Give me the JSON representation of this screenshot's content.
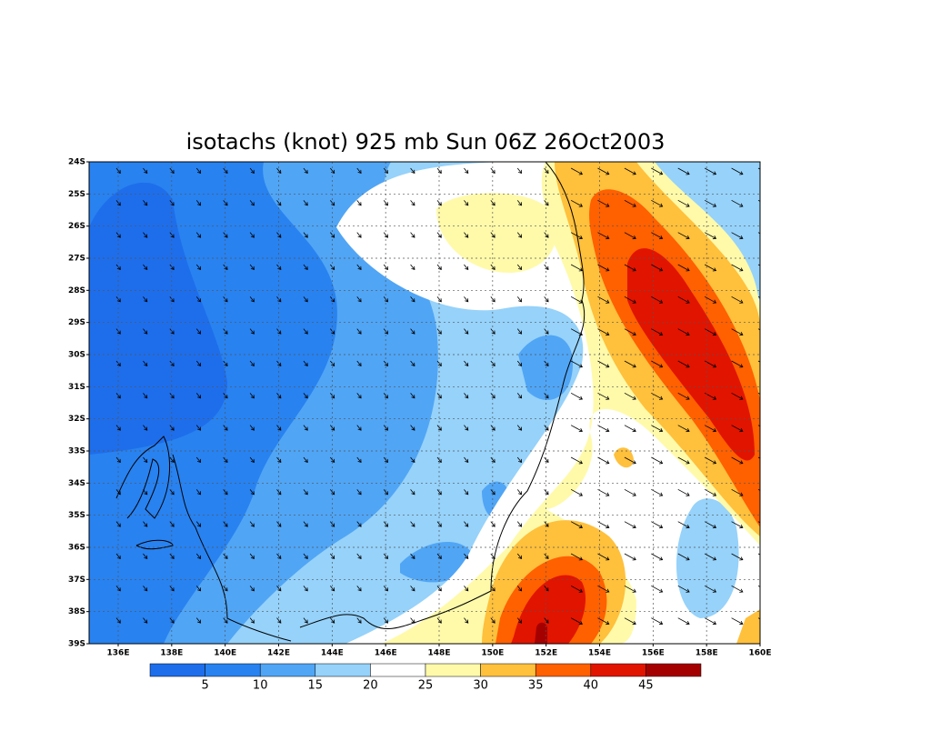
{
  "map": {
    "title": "isotachs (knot) 925 mb Sun 06Z 26Oct2003",
    "lat_labels": [
      "24S",
      "25S",
      "26S",
      "27S",
      "28S",
      "29S",
      "30S",
      "31S",
      "32S",
      "33S",
      "34S",
      "35S",
      "36S",
      "37S",
      "38S",
      "39S"
    ],
    "lon_labels": [
      "136E",
      "138E",
      "140E",
      "142E",
      "144E",
      "146E",
      "148E",
      "150E",
      "152E",
      "154E",
      "156E",
      "158E",
      "160E"
    ],
    "colorbar": {
      "levels": [
        5,
        10,
        15,
        20,
        25,
        30,
        35,
        40,
        45
      ],
      "colors": [
        "#1e6eeb",
        "#2882f0",
        "#50a5f5",
        "#96d2fa",
        "#ffffff",
        "#fffaaa",
        "#ffc03c",
        "#ff6000",
        "#e11400",
        "#a50000"
      ]
    }
  }
}
